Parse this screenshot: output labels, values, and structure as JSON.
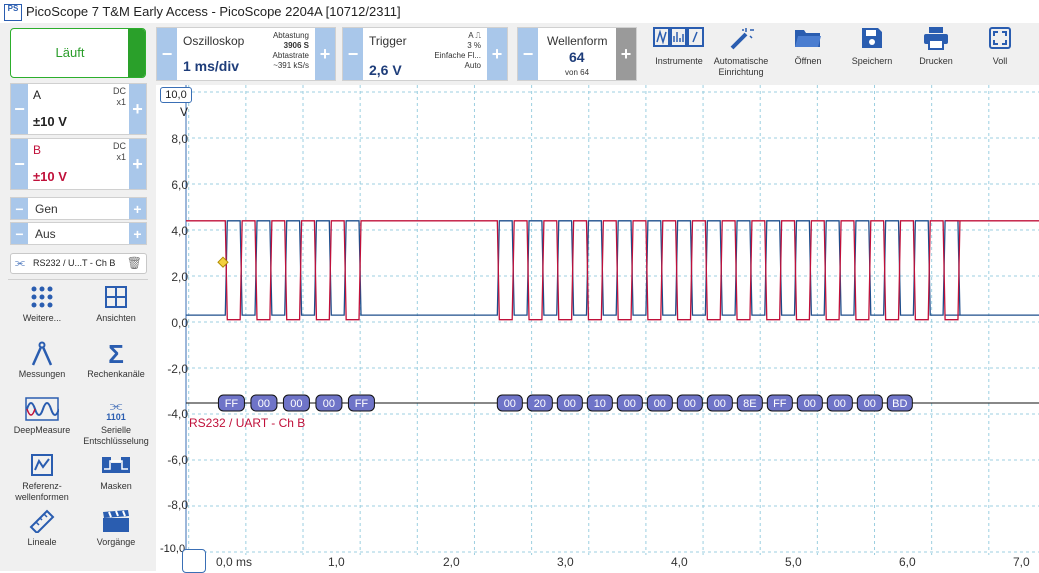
{
  "window": {
    "title": "PicoScope 7 T&M Early Access  - PicoScope 2204A [10712/2311]",
    "logo": "PS"
  },
  "run_button": {
    "label": "Läuft"
  },
  "channels": [
    {
      "name": "A",
      "coupling": "DC",
      "probe": "x1",
      "range": "±10 V",
      "color": "#1e3d7a"
    },
    {
      "name": "B",
      "coupling": "DC",
      "probe": "x1",
      "range": "±10 V",
      "color": "#c0103a"
    }
  ],
  "generator": {
    "label": "Gen",
    "state": "Aus"
  },
  "decoder_chip": {
    "label": "RS232 / U...T - Ch B"
  },
  "tools": [
    {
      "label": "Weitere...",
      "icon": "grid-dots-icon"
    },
    {
      "label": "Ansichten",
      "icon": "views-icon"
    },
    {
      "label": "Messungen",
      "icon": "caliper-icon"
    },
    {
      "label": "Rechenkanäle",
      "icon": "sigma-icon"
    },
    {
      "label": "DeepMeasure",
      "icon": "deepmeasure-icon"
    },
    {
      "label": "Serielle Entschlüsselung",
      "icon": "serial-decode-icon",
      "sub": "1101"
    },
    {
      "label": "Referenz-wellenformen",
      "icon": "reference-icon"
    },
    {
      "label": "Masken",
      "icon": "mask-icon"
    },
    {
      "label": "Lineale",
      "icon": "ruler-icon"
    },
    {
      "label": "Vorgänge",
      "icon": "clapper-icon"
    }
  ],
  "toolbar": {
    "oscilloscope": {
      "label": "Oszilloskop",
      "timebase": "1 ms/div",
      "sampling_label": "Abtastung",
      "samples": "3906 S",
      "rate_label": "Abtastrate",
      "rate": "~391 kS/s"
    },
    "trigger": {
      "label": "Trigger",
      "level": "2,6 V",
      "channel": "A",
      "percent": "3 %",
      "type": "Einfache Fl...",
      "mode": "Auto"
    },
    "waveform": {
      "label": "Wellenform",
      "value": "64",
      "of": "von 64"
    },
    "buttons": [
      {
        "label": "Instrumente",
        "icon": "instruments-icon"
      },
      {
        "label": "Automatische Einrichtung",
        "icon": "magic-wand-icon"
      },
      {
        "label": "Öffnen",
        "icon": "folder-icon"
      },
      {
        "label": "Speichern",
        "icon": "save-icon"
      },
      {
        "label": "Drucken",
        "icon": "print-icon"
      },
      {
        "label": "Voll",
        "icon": "fullscreen-icon"
      }
    ]
  },
  "plot": {
    "y_unit": "V",
    "y_top_label": "10,0",
    "y_bottom_label": "-10,0",
    "y_ticks": [
      "8,0",
      "6,0",
      "4,0",
      "2,0",
      "0,0",
      "-2,0",
      "-4,0",
      "-6,0",
      "-8,0"
    ],
    "x_ticks": [
      "0,0 ms",
      "1,0",
      "2,0",
      "3,0",
      "4,0",
      "5,0",
      "6,0",
      "7,0"
    ],
    "decoder_label": "RS232 / UART - Ch B",
    "decoded_bytes_group1": [
      "FF",
      "00",
      "00",
      "00",
      "FF"
    ],
    "decoded_bytes_group2": [
      "00",
      "20",
      "00",
      "10",
      "00",
      "00",
      "00",
      "00",
      "8E",
      "FF",
      "00",
      "00",
      "00",
      "BD"
    ],
    "colors": {
      "channel_a": "#1e4e8c",
      "channel_b": "#c0103a",
      "grid": "#9ccfe0",
      "packet_fill": "#6f74c8"
    }
  }
}
